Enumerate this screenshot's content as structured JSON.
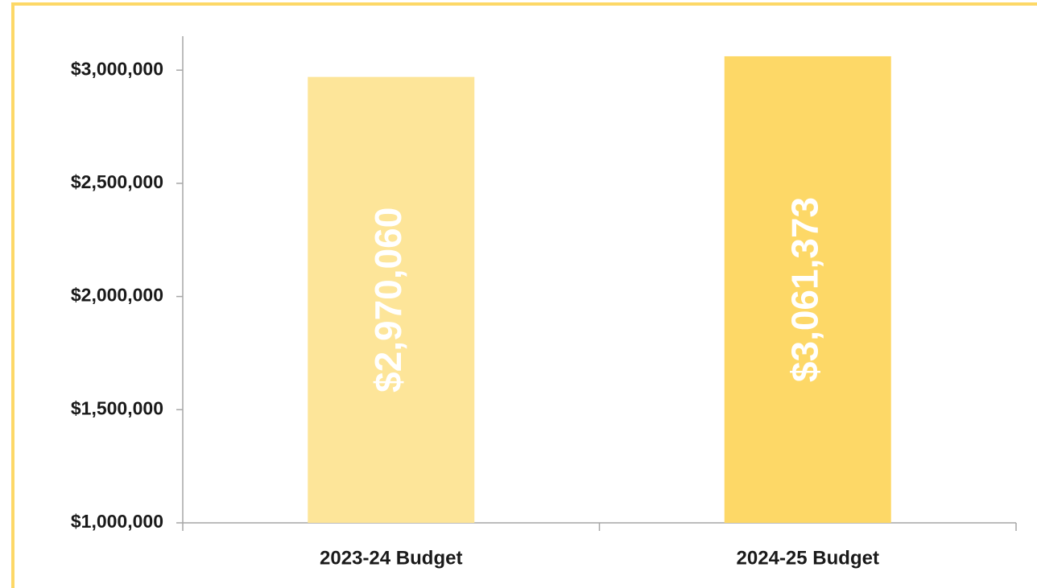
{
  "chart_data": {
    "type": "bar",
    "categories": [
      "2023-24 Budget",
      "2024-25 Budget"
    ],
    "values": [
      2970060,
      3061373
    ],
    "value_labels": [
      "$2,970,060",
      "$3,061,373"
    ],
    "colors": [
      "#fde599",
      "#fdd867"
    ],
    "ylim": [
      1000000,
      3150000
    ],
    "yticks": [
      {
        "value": 1000000,
        "label": "$1,000,000"
      },
      {
        "value": 1500000,
        "label": "$1,500,000"
      },
      {
        "value": 2000000,
        "label": "$2,000,000"
      },
      {
        "value": 2500000,
        "label": "$2,500,000"
      },
      {
        "value": 3000000,
        "label": "$3,000,000"
      }
    ],
    "grid": false
  }
}
